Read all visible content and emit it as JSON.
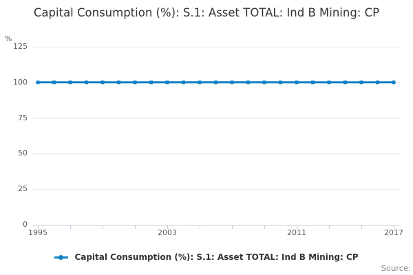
{
  "title": "Capital Consumption (%): S.1: Asset TOTAL: Ind B Mining: CP",
  "y_axis_unit": "%",
  "source_label": "Source:",
  "legend": {
    "label": "Capital Consumption (%): S.1: Asset TOTAL: Ind B Mining: CP"
  },
  "colors": {
    "line": "#0e80c4",
    "grid": "#e6e6e6",
    "axis": "#c4cfdd",
    "title_text": "#333333",
    "tick_text": "#595959",
    "source_text": "#8c8c8c"
  },
  "chart_data": {
    "type": "line",
    "title": "Capital Consumption (%): S.1: Asset TOTAL: Ind B Mining: CP",
    "xlabel": "",
    "ylabel": "%",
    "x": [
      1995,
      1996,
      1997,
      1998,
      1999,
      2000,
      2001,
      2002,
      2003,
      2004,
      2005,
      2006,
      2007,
      2008,
      2009,
      2010,
      2011,
      2012,
      2013,
      2014,
      2015,
      2016,
      2017
    ],
    "series": [
      {
        "name": "Capital Consumption (%): S.1: Asset TOTAL: Ind B Mining: CP",
        "values": [
          100,
          100,
          100,
          100,
          100,
          100,
          100,
          100,
          100,
          100,
          100,
          100,
          100,
          100,
          100,
          100,
          100,
          100,
          100,
          100,
          100,
          100,
          100
        ]
      }
    ],
    "ylim": [
      0,
      125
    ],
    "yticks": [
      0,
      25,
      50,
      75,
      100,
      125
    ],
    "xtick_labels": [
      1995,
      2003,
      2011,
      2017
    ],
    "xtick_minor_step": 2,
    "grid": "horizontal",
    "legend_position": "bottom",
    "marker": "square"
  }
}
